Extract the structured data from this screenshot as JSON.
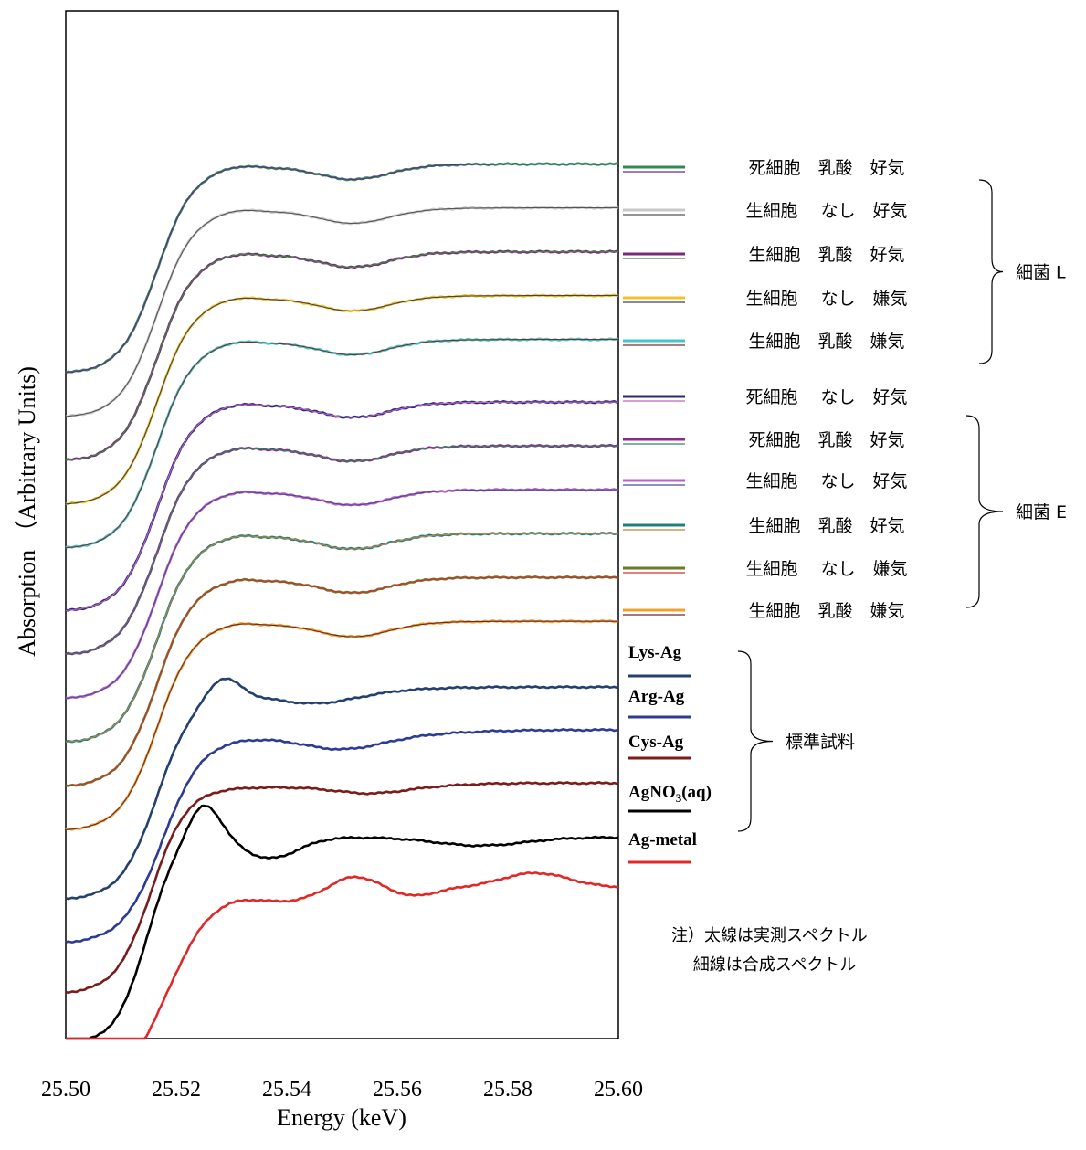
{
  "chart_data": {
    "type": "line",
    "xlabel": "Energy (keV)",
    "ylabel": "Absorption （Arbitrary Units)",
    "xlim": [
      25.5,
      25.6
    ],
    "x_ticks": [
      "25.50",
      "25.52",
      "25.54",
      "25.56",
      "25.58",
      "25.60"
    ],
    "grid": false,
    "series": [
      {
        "name": "死細胞　乳酸　好気",
        "group": "bacteriaL",
        "offset": 0.0,
        "template": "cell",
        "color_measured": "#2e8b57",
        "color_fit": "#6a2a8a"
      },
      {
        "name": "生細胞　 なし　好気",
        "group": "bacteriaL",
        "offset": -0.35,
        "template": "cell",
        "color_measured": "#c8c8c8",
        "color_fit": "#555555"
      },
      {
        "name": "生細胞　乳酸　好気",
        "group": "bacteriaL",
        "offset": -0.7,
        "template": "cell",
        "color_measured": "#7a2a7a",
        "color_fit": "#3a8a3a"
      },
      {
        "name": "生細胞　 なし　嫌気",
        "group": "bacteriaL",
        "offset": -1.05,
        "template": "cell",
        "color_measured": "#f0c030",
        "color_fit": "#444444"
      },
      {
        "name": "生細胞　乳酸　嫌気",
        "group": "bacteriaL",
        "offset": -1.4,
        "template": "cell",
        "color_measured": "#40c8c8",
        "color_fit": "#7a3030"
      },
      {
        "name": "死細胞　 なし　好気",
        "group": "bacteriaE",
        "offset": -1.9,
        "template": "cell",
        "color_measured": "#2a2a7a",
        "color_fit": "#c060c0"
      },
      {
        "name": "死細胞　乳酸　好気",
        "group": "bacteriaE",
        "offset": -2.25,
        "template": "cell",
        "color_measured": "#8a2a8a",
        "color_fit": "#2a8a5a"
      },
      {
        "name": "生細胞　 なし　好気",
        "group": "bacteriaE",
        "offset": -2.6,
        "template": "cell",
        "color_measured": "#c060c0",
        "color_fit": "#4a4a9a"
      },
      {
        "name": "生細胞　乳酸　好気",
        "group": "bacteriaE",
        "offset": -2.95,
        "template": "cell",
        "color_measured": "#208080",
        "color_fit": "#c08040"
      },
      {
        "name": "生細胞　 なし　嫌気",
        "group": "bacteriaE",
        "offset": -3.3,
        "template": "cell",
        "color_measured": "#6a7a2a",
        "color_fit": "#d03030"
      },
      {
        "name": "生細胞　乳酸　嫌気",
        "group": "bacteriaE",
        "offset": -3.65,
        "template": "cell",
        "color_measured": "#f0a030",
        "color_fit": "#6a2a2a"
      },
      {
        "name": "Lys-Ag",
        "group": "standard",
        "offset": -4.2,
        "template": "lys",
        "color_measured": "#24406e"
      },
      {
        "name": "Arg-Ag",
        "group": "standard",
        "offset": -4.55,
        "template": "arg",
        "color_measured": "#2c3c94"
      },
      {
        "name": "Cys-Ag",
        "group": "standard",
        "offset": -4.95,
        "template": "cys",
        "color_measured": "#7a1c1c"
      },
      {
        "name": "AgNO3(aq)",
        "group": "standard",
        "offset": -5.35,
        "template": "agno3",
        "color_measured": "#000000"
      },
      {
        "name": "Ag-metal",
        "group": "standard",
        "offset": -5.75,
        "template": "metal",
        "color_measured": "#e02828"
      }
    ],
    "groups": [
      {
        "id": "bacteriaL",
        "label": "細菌 L"
      },
      {
        "id": "bacteriaE",
        "label": "細菌 E"
      },
      {
        "id": "standard",
        "label": "標準試料"
      }
    ],
    "standard_labels": {
      "lys": "Lys-Ag",
      "arg": "Arg-Ag",
      "cys": "Cys-Ag",
      "agno3_main": "AgNO",
      "agno3_sub": "3",
      "agno3_tail": "(aq)",
      "metal": "Ag-metal"
    },
    "note": [
      "注）太線は実測スペクトル",
      "　 細線は合成スペクトル"
    ]
  }
}
